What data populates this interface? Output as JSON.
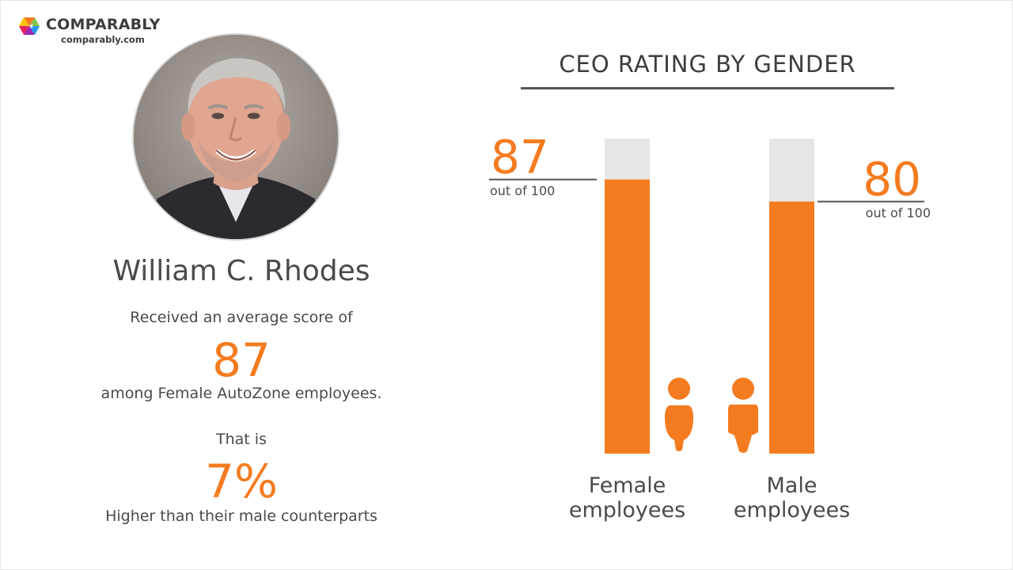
{
  "brand": {
    "name": "COMPARABLY",
    "url": "comparably.com",
    "logo_colors": [
      "#f47b20",
      "#8bc34a",
      "#2196f3",
      "#9c27b0"
    ]
  },
  "ceo": {
    "name": "William C. Rhodes",
    "photo_icon": "ceo-portrait-photo"
  },
  "summary": {
    "line1": "Received an average score of",
    "score": "87",
    "line2": "among Female AutoZone employees.",
    "line3": "That is",
    "percent": "7%",
    "line4": "Higher than their male counterparts"
  },
  "colors": {
    "accent": "#f47b20",
    "track": "#e6e6e6",
    "text": "#4a4a4a"
  },
  "chart_data": {
    "type": "bar",
    "title": "CEO RATING BY GENDER",
    "categories": [
      "Female employees",
      "Male employees"
    ],
    "category_lines": [
      [
        "Female",
        "employees"
      ],
      [
        "Male",
        "employees"
      ]
    ],
    "values": [
      87,
      80
    ],
    "max": 100,
    "ylim": [
      0,
      100
    ],
    "value_labels": [
      "87",
      "80"
    ],
    "sub_label": "out of 100",
    "icons": [
      "female-person-icon",
      "male-person-icon"
    ],
    "grid": false
  }
}
